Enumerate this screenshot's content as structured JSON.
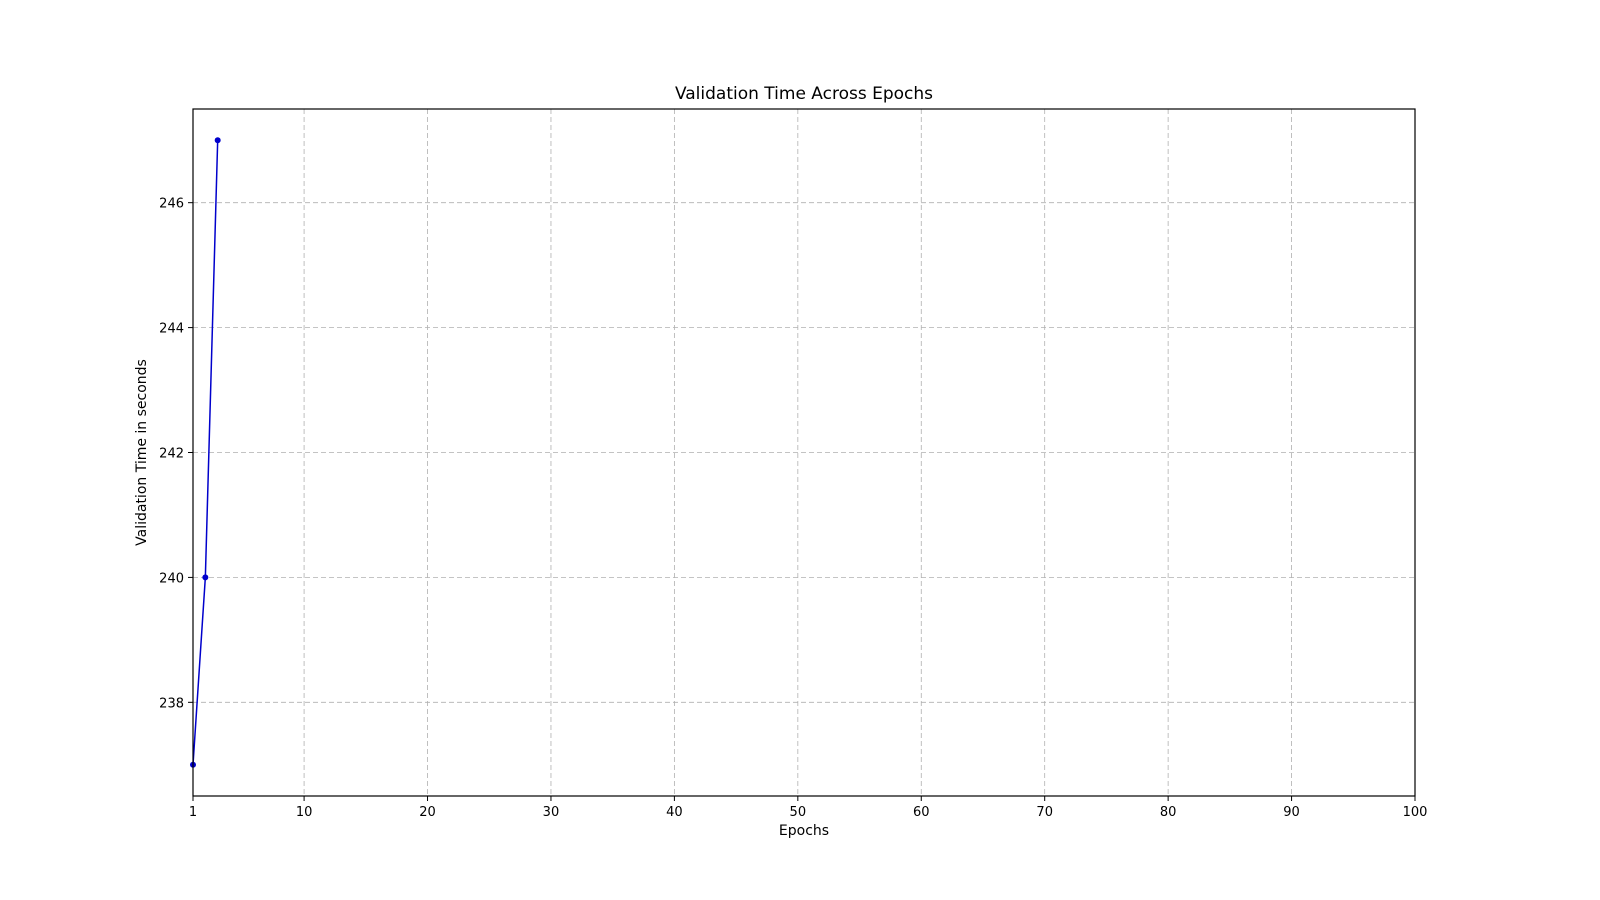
{
  "chart_data": {
    "type": "line",
    "title": "Validation Time Across Epochs",
    "xlabel": "Epochs",
    "ylabel": "Validation Time in seconds",
    "xlim": [
      1,
      100
    ],
    "ylim": [
      236.5,
      247.5
    ],
    "x_ticks": [
      1,
      10,
      20,
      30,
      40,
      50,
      60,
      70,
      80,
      90,
      100
    ],
    "y_ticks": [
      238,
      240,
      242,
      244,
      246
    ],
    "grid": true,
    "legend": "none",
    "series": [
      {
        "x": [
          1,
          2,
          3
        ],
        "values": [
          237,
          240,
          247
        ],
        "color": "#0000cc"
      }
    ]
  }
}
